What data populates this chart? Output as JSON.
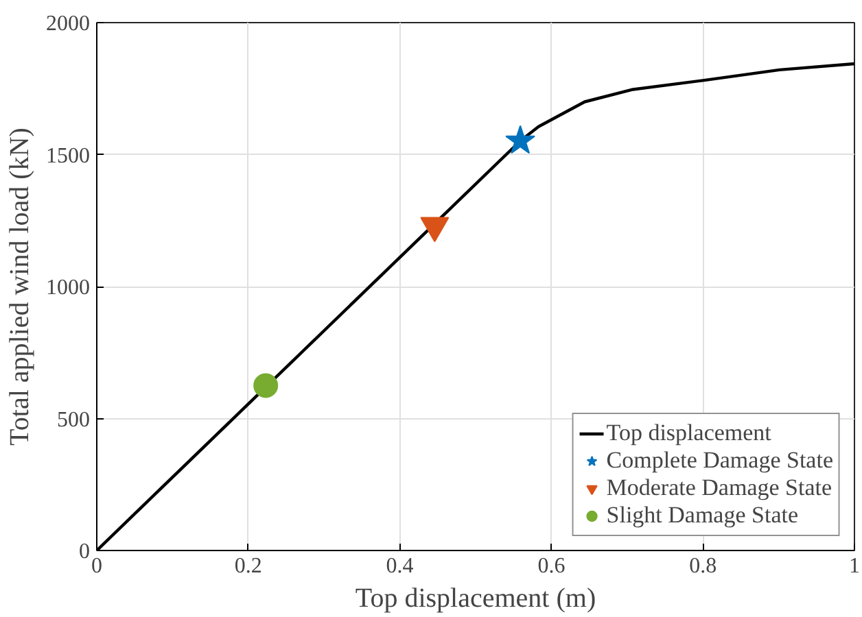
{
  "chart_data": {
    "type": "line",
    "xlabel": "Top displacement (m)",
    "ylabel": "Total applied wind load (kN)",
    "xlim": [
      0,
      1
    ],
    "ylim": [
      0,
      2000
    ],
    "xticks": [
      0,
      0.2,
      0.4,
      0.6,
      0.8,
      1
    ],
    "yticks": [
      0,
      500,
      1000,
      1500,
      2000
    ],
    "grid": true,
    "legend": "bottom right",
    "series": [
      {
        "name": "Top displacement",
        "color": "#000000",
        "marker": "none",
        "line_style": "solid",
        "x": [
          0,
          0.559,
          0.583,
          0.644,
          0.706,
          0.8,
          0.901,
          1.0
        ],
        "values": [
          0,
          1552,
          1606,
          1700,
          1746,
          1781,
          1821,
          1844
        ]
      },
      {
        "name": "Complete Damage State",
        "type": "scatter",
        "color": "#0072bd",
        "marker": "star",
        "x": [
          0.559
        ],
        "values": [
          1552
        ]
      },
      {
        "name": "Moderate Damage State",
        "type": "scatter",
        "color": "#d95319",
        "marker": "triangle",
        "x": [
          0.446
        ],
        "values": [
          1231
        ]
      },
      {
        "name": "Slight Damage State",
        "type": "scatter",
        "color": "#77ac30",
        "marker": "circle",
        "x": [
          0.223
        ],
        "values": [
          625
        ]
      }
    ]
  }
}
